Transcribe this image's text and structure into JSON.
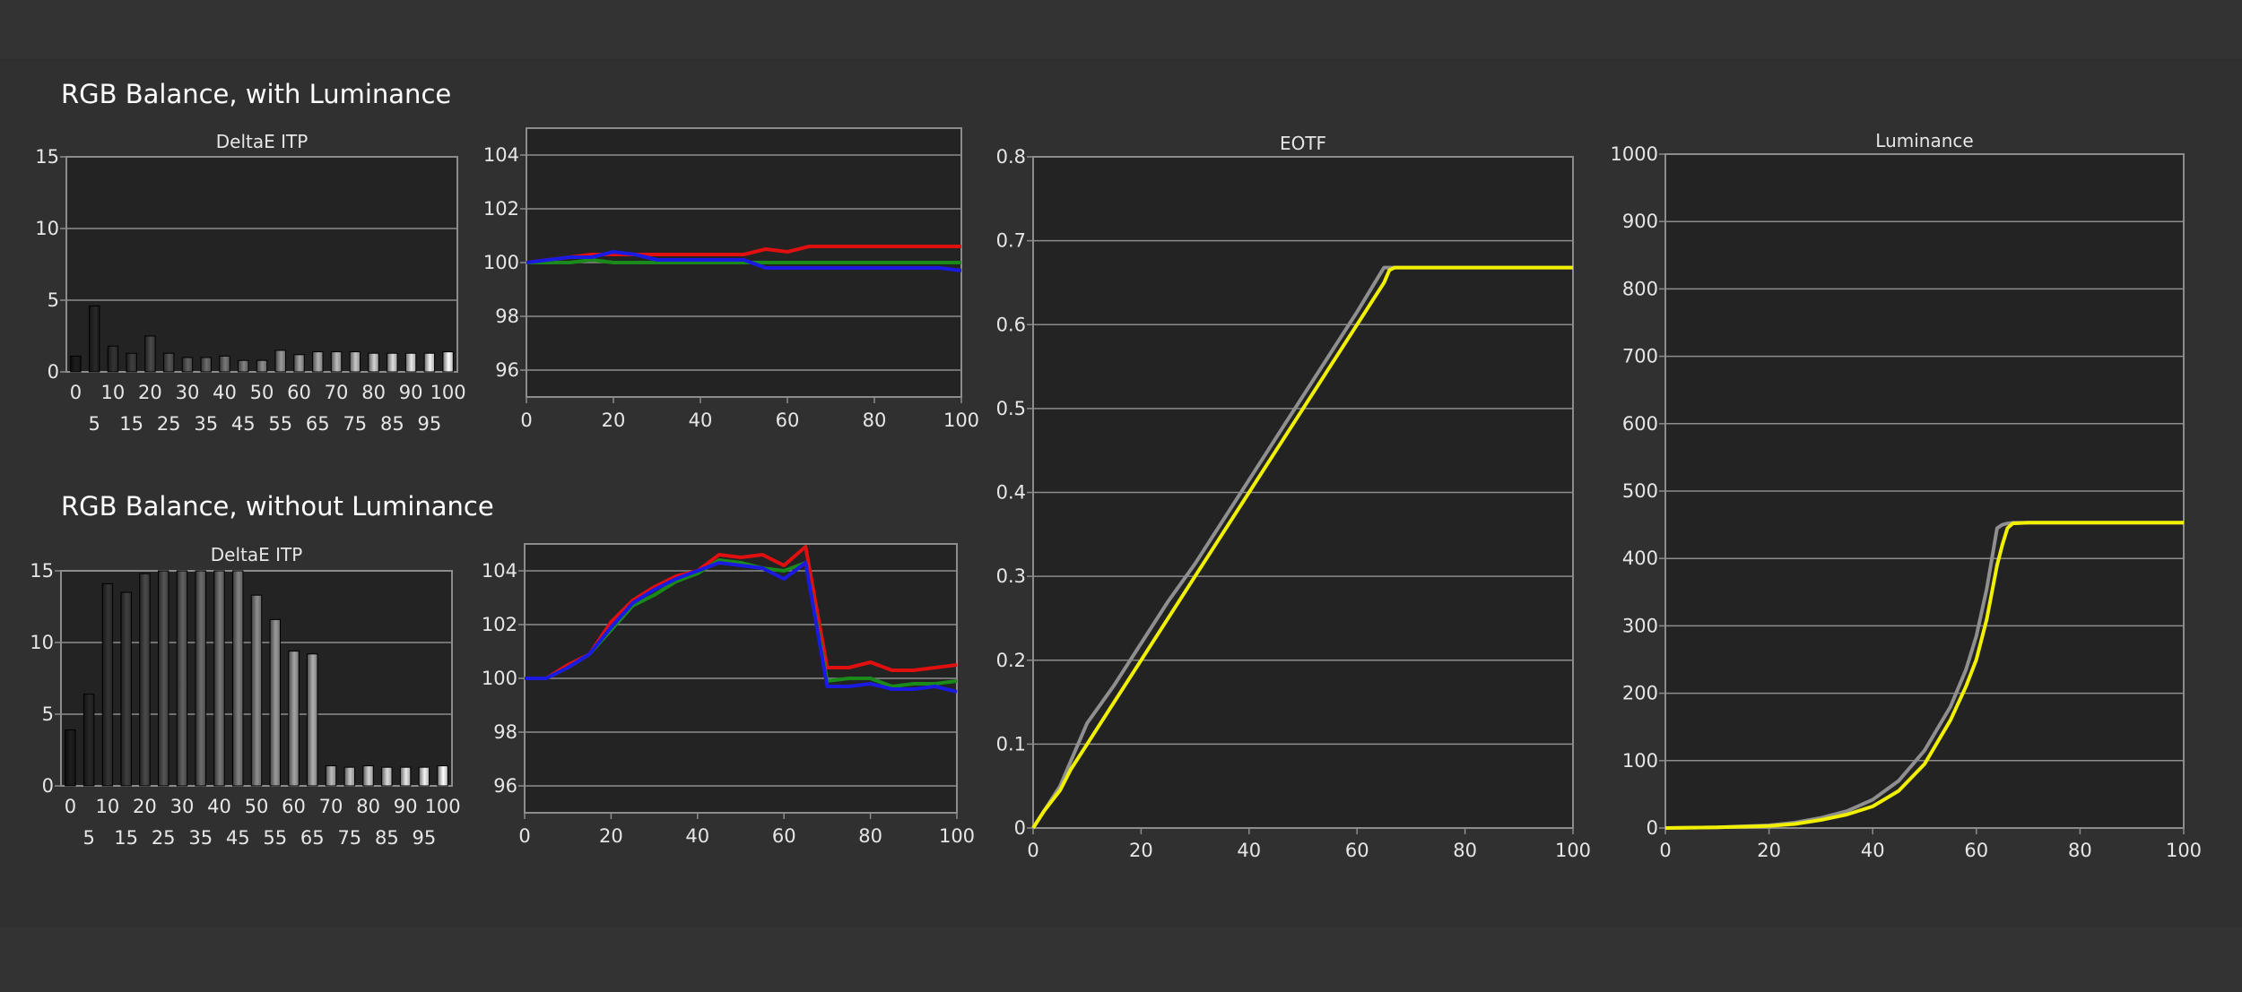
{
  "headings": {
    "with_luminance": "RGB Balance, with Luminance",
    "without_luminance": "RGB Balance, without Luminance"
  },
  "colors": {
    "background": "#333333",
    "plot_background": "#232323",
    "grid": "#8c8c8c",
    "red": "#e01010",
    "green": "#1a8a1a",
    "blue": "#1a1ae0",
    "target": "#8f8f8f",
    "measured": "#f0f000"
  },
  "chart_data": [
    {
      "id": "deltae_with",
      "type": "bar",
      "title": "DeltaE ITP",
      "categories": [
        "0",
        "5",
        "10",
        "15",
        "20",
        "25",
        "30",
        "35",
        "40",
        "45",
        "50",
        "55",
        "60",
        "65",
        "70",
        "75",
        "80",
        "85",
        "90",
        "95",
        "100"
      ],
      "values": [
        1.1,
        4.6,
        1.8,
        1.3,
        2.5,
        1.3,
        1.0,
        1.0,
        1.1,
        0.8,
        0.8,
        1.5,
        1.2,
        1.4,
        1.4,
        1.4,
        1.3,
        1.3,
        1.3,
        1.3,
        1.4
      ],
      "ylim": [
        0,
        15
      ],
      "yticks": [
        0,
        5,
        10,
        15
      ],
      "xticks_top": [
        "0",
        "10",
        "20",
        "30",
        "40",
        "50",
        "60",
        "70",
        "80",
        "90",
        "100"
      ],
      "xticks_bottom": [
        "5",
        "15",
        "25",
        "35",
        "45",
        "55",
        "65",
        "75",
        "85",
        "95"
      ]
    },
    {
      "id": "rgb_with",
      "type": "line",
      "x": [
        0,
        5,
        10,
        15,
        20,
        25,
        30,
        35,
        40,
        45,
        50,
        55,
        60,
        65,
        70,
        75,
        80,
        85,
        90,
        95,
        100
      ],
      "series": [
        {
          "color": "red",
          "values": [
            100.0,
            100.1,
            100.2,
            100.3,
            100.3,
            100.3,
            100.3,
            100.3,
            100.3,
            100.3,
            100.3,
            100.5,
            100.4,
            100.6,
            100.6,
            100.6,
            100.6,
            100.6,
            100.6,
            100.6,
            100.6
          ]
        },
        {
          "color": "green",
          "values": [
            100.0,
            100.0,
            100.0,
            100.1,
            100.0,
            100.0,
            100.0,
            100.0,
            100.0,
            100.0,
            100.0,
            100.0,
            100.0,
            100.0,
            100.0,
            100.0,
            100.0,
            100.0,
            100.0,
            100.0,
            100.0
          ]
        },
        {
          "color": "blue",
          "values": [
            100.0,
            100.1,
            100.2,
            100.2,
            100.4,
            100.3,
            100.1,
            100.1,
            100.1,
            100.1,
            100.1,
            99.8,
            99.8,
            99.8,
            99.8,
            99.8,
            99.8,
            99.8,
            99.8,
            99.8,
            99.7
          ]
        }
      ],
      "ylim": [
        95,
        105
      ],
      "yticks": [
        96,
        98,
        100,
        102,
        104
      ],
      "xticks": [
        0,
        20,
        40,
        60,
        80,
        100
      ]
    },
    {
      "id": "deltae_without",
      "type": "bar",
      "title": "DeltaE ITP",
      "categories": [
        "0",
        "5",
        "10",
        "15",
        "20",
        "25",
        "30",
        "35",
        "40",
        "45",
        "50",
        "55",
        "60",
        "65",
        "70",
        "75",
        "80",
        "85",
        "90",
        "95",
        "100"
      ],
      "values": [
        3.9,
        6.4,
        14.1,
        13.5,
        14.8,
        15.0,
        15.0,
        15.0,
        15.0,
        15.0,
        13.3,
        11.6,
        9.4,
        9.2,
        1.4,
        1.3,
        1.4,
        1.3,
        1.3,
        1.3,
        1.4
      ],
      "ylim": [
        0,
        15
      ],
      "yticks": [
        0,
        5,
        10,
        15
      ],
      "xticks_top": [
        "0",
        "10",
        "20",
        "30",
        "40",
        "50",
        "60",
        "70",
        "80",
        "90",
        "100"
      ],
      "xticks_bottom": [
        "5",
        "15",
        "25",
        "35",
        "45",
        "55",
        "65",
        "75",
        "85",
        "95"
      ]
    },
    {
      "id": "rgb_without",
      "type": "line",
      "x": [
        0,
        5,
        10,
        15,
        20,
        25,
        30,
        35,
        40,
        45,
        50,
        55,
        60,
        65,
        70,
        75,
        80,
        85,
        90,
        95,
        100
      ],
      "series": [
        {
          "color": "red",
          "values": [
            100.0,
            100.0,
            100.5,
            100.9,
            102.1,
            102.9,
            103.4,
            103.8,
            104.0,
            104.6,
            104.5,
            104.6,
            104.2,
            104.9,
            100.4,
            100.4,
            100.6,
            100.3,
            100.3,
            100.4,
            100.5
          ]
        },
        {
          "color": "green",
          "values": [
            100.0,
            100.0,
            100.4,
            100.9,
            101.8,
            102.7,
            103.1,
            103.6,
            103.9,
            104.4,
            104.3,
            104.1,
            104.0,
            104.3,
            99.9,
            100.0,
            100.0,
            99.7,
            99.8,
            99.8,
            99.9
          ]
        },
        {
          "color": "blue",
          "values": [
            100.0,
            100.0,
            100.4,
            100.9,
            101.9,
            102.8,
            103.3,
            103.7,
            104.0,
            104.3,
            104.2,
            104.1,
            103.7,
            104.3,
            99.7,
            99.7,
            99.8,
            99.6,
            99.6,
            99.7,
            99.5
          ]
        }
      ],
      "ylim": [
        95,
        105
      ],
      "yticks": [
        96,
        98,
        100,
        102,
        104
      ],
      "xticks": [
        0,
        20,
        40,
        60,
        80,
        100
      ]
    },
    {
      "id": "eotf",
      "type": "line",
      "title": "EOTF",
      "x": [
        0,
        2,
        5,
        7,
        10,
        15,
        20,
        25,
        30,
        35,
        40,
        45,
        50,
        55,
        60,
        65,
        66,
        67,
        70,
        80,
        90,
        100
      ],
      "series": [
        {
          "color": "target",
          "values": [
            0.0,
            0.02,
            0.05,
            0.08,
            0.125,
            0.17,
            0.22,
            0.27,
            0.315,
            0.365,
            0.415,
            0.465,
            0.515,
            0.565,
            0.615,
            0.668,
            0.668,
            0.668,
            0.668,
            0.668,
            0.668,
            0.668
          ]
        },
        {
          "color": "measured",
          "values": [
            0.0,
            0.02,
            0.045,
            0.07,
            0.1,
            0.15,
            0.2,
            0.25,
            0.3,
            0.35,
            0.4,
            0.45,
            0.5,
            0.55,
            0.6,
            0.65,
            0.665,
            0.668,
            0.668,
            0.668,
            0.668,
            0.668
          ]
        }
      ],
      "ylim": [
        0,
        0.8
      ],
      "yticks": [
        0,
        0.1,
        0.2,
        0.3,
        0.4,
        0.5,
        0.6,
        0.7,
        0.8
      ],
      "xticks": [
        0,
        20,
        40,
        60,
        80,
        100
      ]
    },
    {
      "id": "luminance",
      "type": "line",
      "title": "Luminance",
      "x": [
        0,
        10,
        20,
        25,
        30,
        35,
        40,
        45,
        50,
        55,
        58,
        60,
        62,
        64,
        65,
        66,
        67,
        70,
        80,
        90,
        100
      ],
      "series": [
        {
          "color": "target",
          "values": [
            0,
            1,
            4,
            8,
            15,
            25,
            42,
            70,
            115,
            180,
            235,
            285,
            355,
            445,
            450,
            452,
            453,
            453,
            453,
            453,
            453
          ]
        },
        {
          "color": "measured",
          "values": [
            0,
            1,
            3,
            6,
            12,
            20,
            32,
            55,
            95,
            160,
            210,
            250,
            310,
            390,
            420,
            445,
            452,
            453,
            453,
            453,
            453
          ]
        }
      ],
      "ylim": [
        0,
        1000
      ],
      "yticks": [
        0,
        100,
        200,
        300,
        400,
        500,
        600,
        700,
        800,
        900,
        1000
      ],
      "xticks": [
        0,
        20,
        40,
        60,
        80,
        100
      ]
    }
  ]
}
